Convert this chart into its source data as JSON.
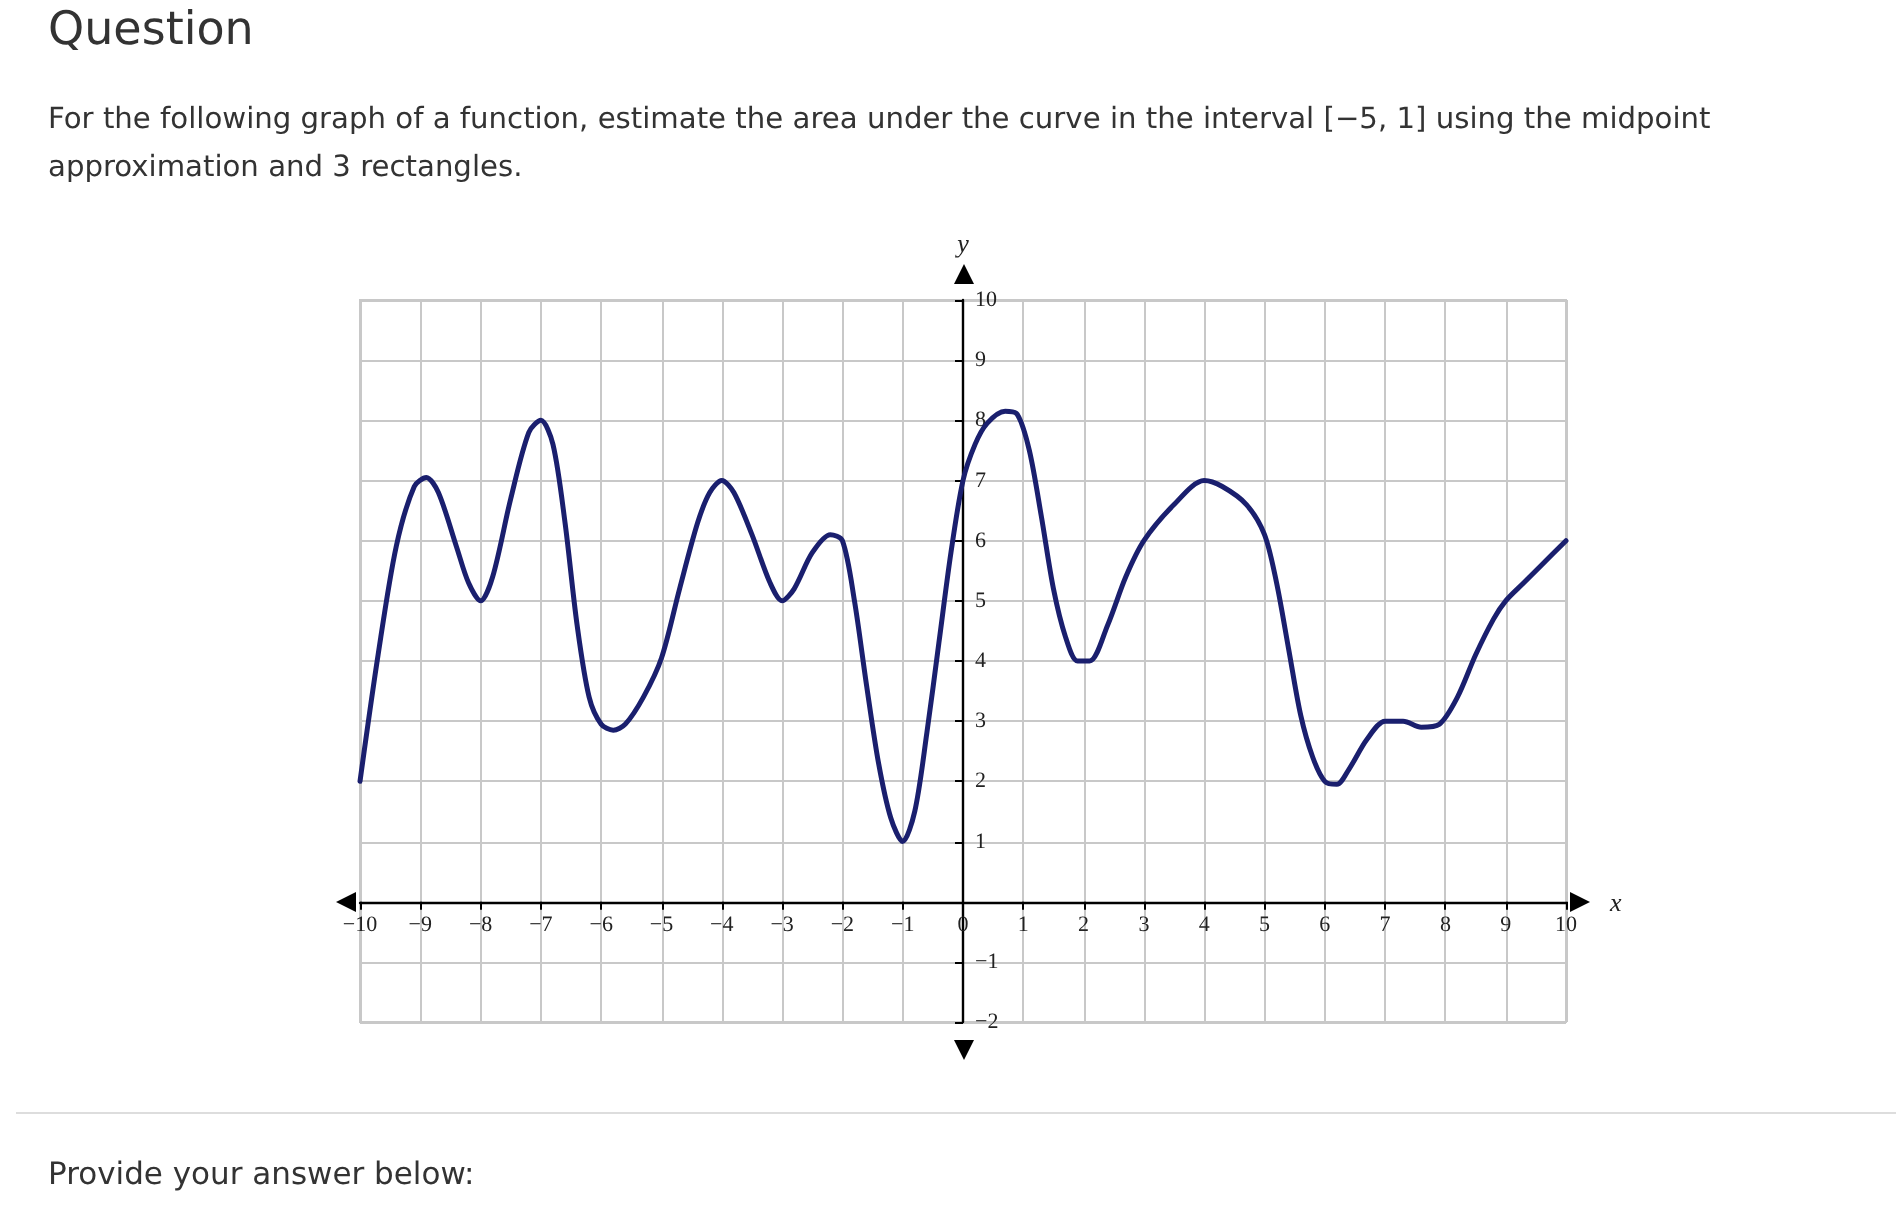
{
  "chart_data": {
    "type": "line",
    "title": "Question",
    "subtitle": "For the following graph of a function, estimate the area under the curve in the interval [−5, 1] using the midpoint approximation and 3 rectangles.",
    "xlabel": "x",
    "ylabel": "y",
    "x": [
      -10,
      -9.7,
      -9.4,
      -9.1,
      -8.9,
      -8.7,
      -8.4,
      -8.2,
      -8,
      -7.8,
      -7.5,
      -7.2,
      -7,
      -6.8,
      -6.6,
      -6.4,
      -6.2,
      -6,
      -5.8,
      -5.6,
      -5.3,
      -5,
      -4.7,
      -4.4,
      -4.2,
      -4,
      -3.8,
      -3.5,
      -3.2,
      -3,
      -2.8,
      -2.5,
      -2.2,
      -2,
      -1.8,
      -1.6,
      -1.4,
      -1.2,
      -1,
      -0.8,
      -0.6,
      -0.4,
      -0.2,
      0,
      0.2,
      0.4,
      0.7,
      0.9,
      1.1,
      1.3,
      1.5,
      1.7,
      1.9,
      2.1,
      2.4,
      2.7,
      3,
      3.5,
      4,
      4.3,
      4.7,
      5,
      5.2,
      5.4,
      5.6,
      5.8,
      6,
      6.2,
      6.4,
      6.7,
      7,
      7.3,
      7.6,
      7.9,
      8.2,
      8.5,
      8.8,
      9,
      9.3,
      9.6,
      10
    ],
    "series": [
      {
        "color": "#1a1f6e",
        "values": [
          2,
          4.1,
          5.9,
          6.9,
          7.05,
          6.8,
          5.9,
          5.3,
          5,
          5.4,
          6.7,
          7.8,
          8,
          7.6,
          6.3,
          4.6,
          3.4,
          2.95,
          2.85,
          2.95,
          3.4,
          4.05,
          5.2,
          6.3,
          6.8,
          7,
          6.8,
          6.1,
          5.3,
          5,
          5.2,
          5.8,
          6.1,
          6,
          5,
          3.6,
          2.3,
          1.4,
          1,
          1.5,
          2.8,
          4.3,
          5.8,
          7,
          7.6,
          7.95,
          8.15,
          8.1,
          7.5,
          6.4,
          5.2,
          4.4,
          4,
          4,
          4.6,
          5.4,
          6,
          6.6,
          7,
          6.9,
          6.6,
          6.1,
          5.3,
          4.2,
          3.1,
          2.4,
          2,
          1.95,
          2.2,
          2.7,
          3,
          3,
          2.9,
          2.95,
          3.4,
          4.1,
          4.7,
          5,
          5.3,
          5.6,
          6
        ]
      }
    ],
    "xlim": [
      -10,
      10
    ],
    "ylim": [
      -2,
      10
    ],
    "xticks": [
      -10,
      -9,
      -8,
      -7,
      -6,
      -5,
      -4,
      -3,
      -2,
      -1,
      0,
      1,
      2,
      3,
      4,
      5,
      6,
      7,
      8,
      9,
      10
    ],
    "yticks": [
      -2,
      -1,
      {
        "value": 0,
        "label": null
      },
      1,
      2,
      3,
      4,
      5,
      6,
      7,
      8,
      9,
      10
    ],
    "grid": true,
    "marker": "none",
    "line_style": "solid",
    "annotations": [
      "Provide your answer below:"
    ]
  }
}
